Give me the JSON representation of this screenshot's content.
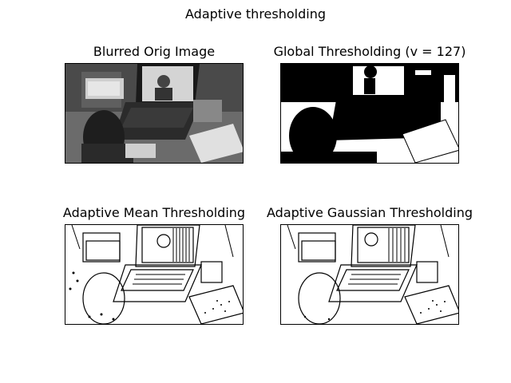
{
  "figure": {
    "suptitle": "Adaptive thresholding"
  },
  "panels": [
    {
      "title": "Blurred Orig Image",
      "content": "grayscale photo: child at laptop on video call, notebooks on desk"
    },
    {
      "title": "Global Thresholding (v = 127)",
      "content": "binary image, global threshold"
    },
    {
      "title": "Adaptive Mean Thresholding",
      "content": "binary edge-like image, adaptive mean"
    },
    {
      "title": "Adaptive Gaussian Thresholding",
      "content": "binary edge-like image, adaptive gaussian"
    }
  ]
}
